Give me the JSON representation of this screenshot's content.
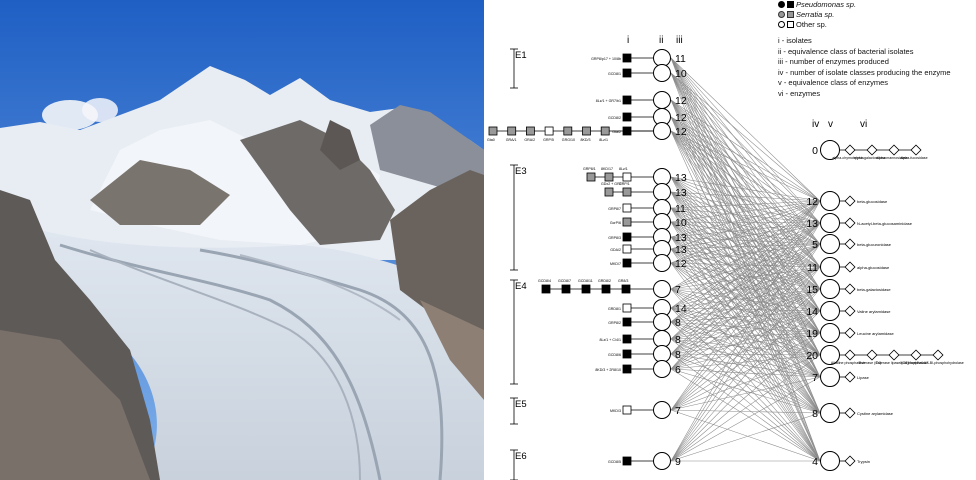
{
  "legend": {
    "pseudomonas": "Pseudomonas sp.",
    "serratia": "Serratia sp.",
    "other": "Other sp."
  },
  "keys": [
    "i  - isolates",
    "ii  - equivalence class of bacterial isolates",
    "iii - number of enzymes produced",
    "iv - number of isolate classes producing the enzyme",
    "v  - equivalence class of enzymes",
    "vi - enzymes"
  ],
  "headers": {
    "i": "i",
    "ii": "ii",
    "iii": "iii",
    "iv": "iv",
    "v": "v",
    "vi": "vi"
  },
  "groups": [
    "E1",
    "E3",
    "E4",
    "E5",
    "E6"
  ],
  "bacterial_classes": [
    {
      "count": "11",
      "isolates": [
        "GRP8/p17 + 10/8b"
      ],
      "colors": [
        "p"
      ]
    },
    {
      "count": "10",
      "isolates": [
        "GCD8/1"
      ],
      "colors": [
        "p"
      ]
    },
    {
      "count": "12",
      "isolates": [
        "8Lz/1 + GR7/b1"
      ],
      "colors": [
        "p"
      ]
    },
    {
      "count": "12",
      "isolates": [
        "GCD8/2"
      ],
      "colors": [
        "p"
      ]
    },
    {
      "count": "12",
      "isolates": [
        "Gta/2"
      ],
      "colors": [
        "p"
      ]
    },
    {
      "count": "12",
      "isolates": [
        "Gta0",
        "GRA/1",
        "GRA/2",
        "GRP/5",
        "GRG/10",
        "8KD/3",
        "8Lz/1"
      ],
      "colors": [
        "s",
        "s",
        "s",
        "o",
        "s",
        "s",
        "s"
      ]
    },
    {
      "count": "13",
      "isolates": [
        "GRP8/1",
        "8KD/17",
        "8Lz/1"
      ],
      "colors": [
        "s",
        "s",
        "o"
      ]
    },
    {
      "count": "13",
      "isolates": [
        "GDx2 + GR7",
        "GRP/1"
      ],
      "colors": [
        "s",
        "s"
      ]
    },
    {
      "count": "11",
      "isolates": [
        "GRP8/7"
      ],
      "colors": [
        "o"
      ]
    },
    {
      "count": "10",
      "isolates": [
        "GcrP/6"
      ],
      "colors": [
        "s"
      ]
    },
    {
      "count": "13",
      "isolates": [
        "GRP8/3"
      ],
      "colors": [
        "p"
      ]
    },
    {
      "count": "13",
      "isolates": [
        "GDA/2"
      ],
      "colors": [
        "o"
      ]
    },
    {
      "count": "12",
      "isolates": [
        "MKD/7"
      ],
      "colors": [
        "p"
      ]
    },
    {
      "count": "7",
      "isolates": [
        "GCD8/4",
        "GCD8/7",
        "GCD8/11",
        "GRD8/2",
        "GR8/3"
      ],
      "colors": [
        "p",
        "p",
        "p",
        "p",
        "p"
      ]
    },
    {
      "count": "14",
      "isolates": [
        "GRD8/1"
      ],
      "colors": [
        "o"
      ]
    },
    {
      "count": "8",
      "isolates": [
        "GRP8/2"
      ],
      "colors": [
        "p"
      ]
    },
    {
      "count": "8",
      "isolates": [
        "8Lz/1 + C/4/1"
      ],
      "colors": [
        "p"
      ]
    },
    {
      "count": "8",
      "isolates": [
        "GCD8/6"
      ],
      "colors": [
        "p"
      ]
    },
    {
      "count": "6",
      "isolates": [
        "8KD/3 + 2R8/10"
      ],
      "colors": [
        "p"
      ]
    },
    {
      "count": "7",
      "isolates": [
        "MKD/3"
      ],
      "colors": [
        "o"
      ]
    },
    {
      "count": "9",
      "isolates": [
        "GCD8/5"
      ],
      "colors": [
        "p"
      ]
    }
  ],
  "enzyme_classes": [
    {
      "count": "0",
      "enzymes": [
        "alpha-chymotrypsin",
        "alpha-galactosidase",
        "alpha-mannosidase",
        "alpha-fucosidase"
      ]
    },
    {
      "count": "12",
      "enzymes": [
        "beta-glucosidase"
      ]
    },
    {
      "count": "13",
      "enzymes": [
        "N-acetyl-beta-glucosaminidase"
      ]
    },
    {
      "count": "5",
      "enzymes": [
        "beta-glucuronidase"
      ]
    },
    {
      "count": "11",
      "enzymes": [
        "alpha-glucosidase"
      ]
    },
    {
      "count": "15",
      "enzymes": [
        "beta-galactosidase"
      ]
    },
    {
      "count": "14",
      "enzymes": [
        "Valine arylamidase"
      ]
    },
    {
      "count": "19",
      "enzymes": [
        "Leucine arylamidase"
      ]
    },
    {
      "count": "20",
      "enzymes": [
        "Alkaline phosphatase",
        "Esterase (C4)",
        "Esterase lipase (C8)",
        "Acid phosphatase",
        "Naphthol-AS-BI-phosphohydrolase"
      ]
    },
    {
      "count": "7",
      "enzymes": [
        "Lipase"
      ]
    },
    {
      "count": "8",
      "enzymes": [
        "Cystine arylamidase"
      ]
    },
    {
      "count": "4",
      "enzymes": [
        "Trypsin"
      ]
    }
  ],
  "colors": {
    "pseudomonas": "#000000",
    "serratia": "#999999",
    "other": "#ffffff",
    "edge": "#8a8a8a"
  }
}
